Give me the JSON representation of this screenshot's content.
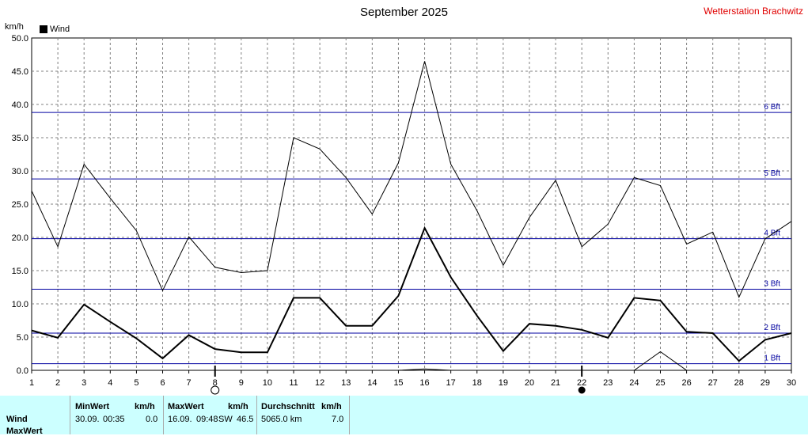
{
  "header": {
    "title": "September 2025",
    "station": "Wetterstation Brachwitz",
    "unit": "km/h",
    "legend_label": "Wind"
  },
  "chart_data": {
    "type": "line",
    "x": [
      1,
      2,
      3,
      4,
      5,
      6,
      7,
      8,
      9,
      10,
      11,
      12,
      13,
      14,
      15,
      16,
      17,
      18,
      19,
      20,
      21,
      22,
      23,
      24,
      25,
      26,
      27,
      28,
      29,
      30
    ],
    "xlim": [
      1,
      30
    ],
    "ylim": [
      0,
      50
    ],
    "y_ticks": [
      "0.0",
      "5.0",
      "10.0",
      "15.0",
      "20.0",
      "25.0",
      "30.0",
      "35.0",
      "40.0",
      "45.0",
      "50.0"
    ],
    "x_ticks": [
      "1",
      "2",
      "3",
      "4",
      "5",
      "6",
      "7",
      "8",
      "9",
      "10",
      "11",
      "12",
      "13",
      "14",
      "15",
      "16",
      "17",
      "18",
      "19",
      "20",
      "21",
      "22",
      "23",
      "24",
      "25",
      "26",
      "27",
      "28",
      "29",
      "30"
    ],
    "grid": true,
    "series": [
      {
        "name": "Wind",
        "values": [
          6.0,
          4.9,
          9.9,
          7.3,
          4.8,
          1.8,
          5.3,
          3.2,
          2.7,
          2.7,
          10.9,
          10.9,
          6.7,
          6.7,
          11.2,
          21.4,
          14.0,
          8.2,
          2.9,
          7.0,
          6.7,
          6.1,
          4.9,
          10.9,
          10.5,
          5.8,
          5.6,
          1.4,
          4.6,
          5.6
        ]
      },
      {
        "values": [
          27.0,
          18.6,
          31.0,
          25.9,
          21.0,
          12.0,
          20.1,
          15.5,
          14.7,
          15.0,
          35.0,
          33.3,
          29.0,
          23.5,
          31.2,
          46.5,
          31.0,
          24.0,
          15.8,
          23.0,
          28.6,
          18.6,
          22.0,
          29.0,
          27.8,
          19.0,
          20.8,
          11.0,
          19.8,
          22.4
        ]
      },
      {
        "values": [
          0,
          0,
          0,
          0,
          0,
          0,
          0,
          0,
          0,
          0,
          0,
          0,
          0,
          0,
          0,
          0.2,
          0,
          0,
          0,
          0,
          0,
          0,
          0,
          0,
          2.8,
          0,
          0,
          0,
          0,
          0
        ]
      }
    ],
    "beaufort_lines": [
      {
        "label": "1 Bft",
        "value": 1.0
      },
      {
        "label": "2 Bft",
        "value": 5.6
      },
      {
        "label": "3 Bft",
        "value": 12.2
      },
      {
        "label": "4 Bft",
        "value": 19.8
      },
      {
        "label": "5 Bft",
        "value": 28.8
      },
      {
        "label": "6 Bft",
        "value": 38.8
      }
    ],
    "moon_phases": [
      {
        "day": 8,
        "phase": "full-moon"
      },
      {
        "day": 22,
        "phase": "new-moon"
      }
    ],
    "colors": {
      "series": "#000000",
      "beaufort": "#0000a0",
      "grid": "#808080",
      "station": "#e00000",
      "stats_bg": "#ccffff"
    }
  },
  "stats": {
    "row_labels": [
      "Wind",
      "MaxWert"
    ],
    "min": {
      "header": "MinWert",
      "unit": "km/h",
      "date": "30.09.",
      "time": "00:35",
      "value": "0.0"
    },
    "max": {
      "header": "MaxWert",
      "unit": "km/h",
      "date": "16.09.",
      "time": "09:48",
      "dir": "SW",
      "value": "46.5"
    },
    "avg": {
      "header": "Durchschnitt",
      "unit": "km/h",
      "distance": "5065.0 km",
      "value": "7.0"
    }
  }
}
